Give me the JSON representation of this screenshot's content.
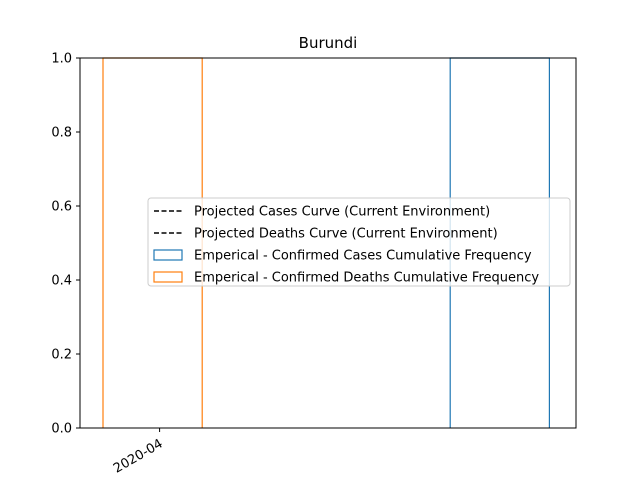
{
  "chart_data": {
    "type": "bar",
    "title": "Burundi",
    "xlabel": "",
    "ylabel": "",
    "ylim": [
      0,
      1.0
    ],
    "yticks": [
      "0.0",
      "0.2",
      "0.4",
      "0.6",
      "0.8",
      "1.0"
    ],
    "xlim": [
      "2020-03-31",
      "2020-04-10"
    ],
    "xticks": [
      {
        "label": "2020-04",
        "date": "2020-04-01"
      }
    ],
    "grid": false,
    "legend_position": "center-right",
    "series": [
      {
        "name": "Projected Cases Curve (Current Environment)",
        "kind": "line",
        "style": "dashed",
        "color": "#000000",
        "points": []
      },
      {
        "name": "Projected Deaths Curve (Current Environment)",
        "kind": "line",
        "style": "dashed",
        "color": "#000000",
        "points": []
      },
      {
        "name": "Emperical - Confirmed Cases Cumulative Frequency",
        "kind": "step-hist",
        "color": "#1f77b4",
        "bins": [
          {
            "start": "2020-04-07",
            "end": "2020-04-09",
            "value": 1.0
          }
        ]
      },
      {
        "name": "Emperical - Confirmed Deaths Cumulative Frequency",
        "kind": "step-hist",
        "color": "#ff7f0e",
        "bins": [
          {
            "start": "2020-03-31",
            "end": "2020-04-02",
            "value": 1.0
          }
        ]
      }
    ]
  }
}
